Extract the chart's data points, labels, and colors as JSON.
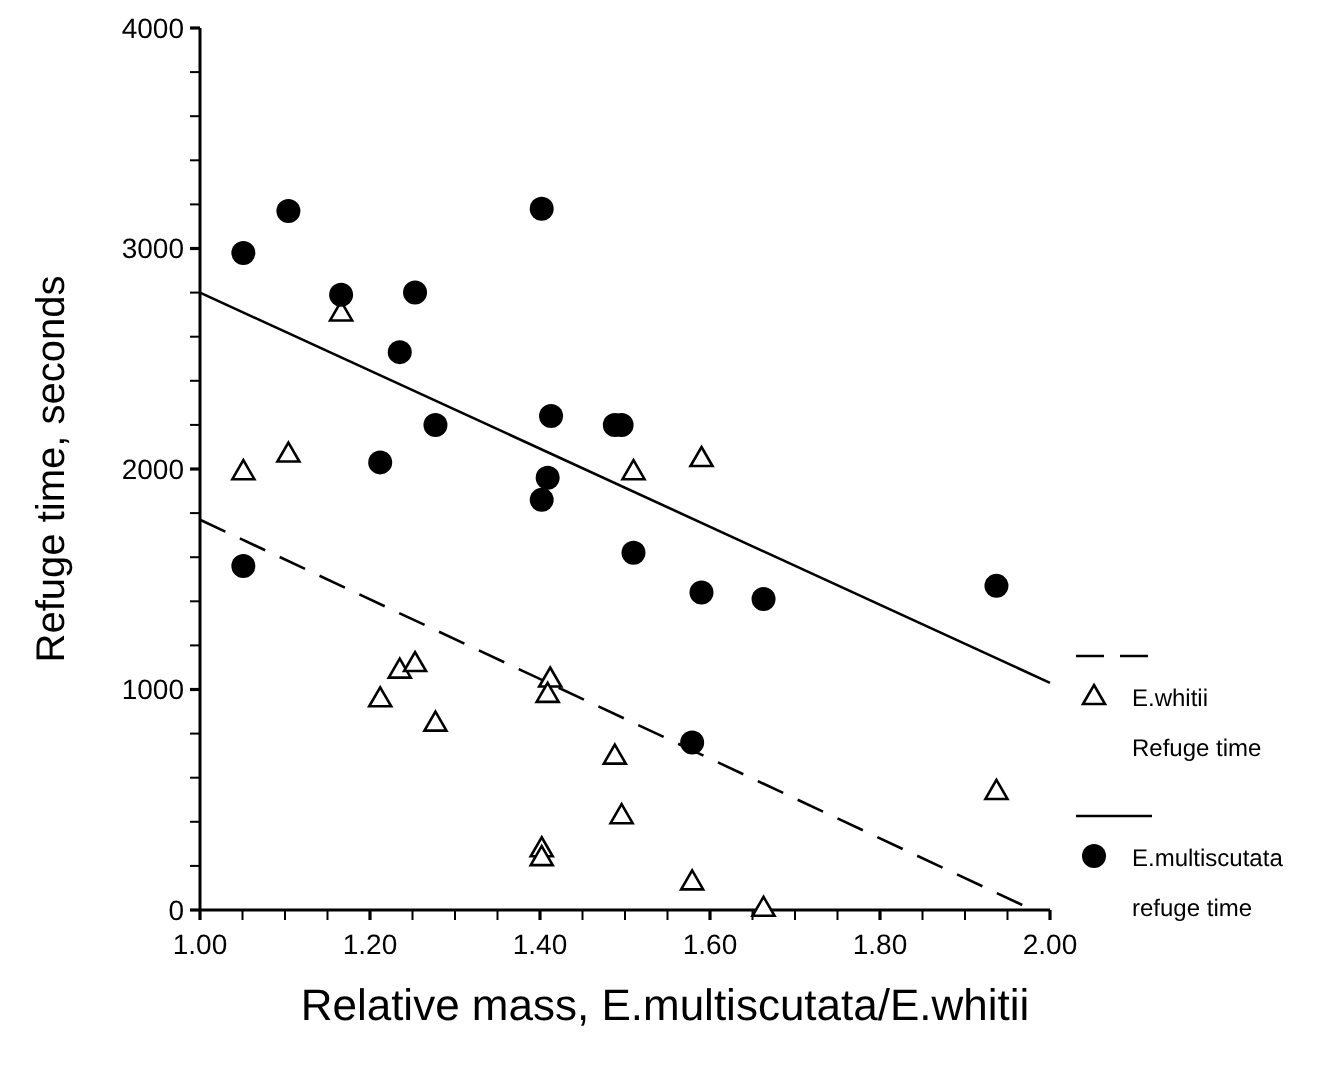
{
  "chart_data": {
    "type": "scatter",
    "xlabel": "Relative mass, E.multiscutata/E.whitii",
    "ylabel": "Refuge time, seconds",
    "xlim": [
      1,
      2
    ],
    "ylim": [
      0,
      4000
    ],
    "xticks": [
      {
        "value": 1,
        "label": "1.00"
      },
      {
        "value": 1.05,
        "label": null
      },
      {
        "value": 1.1,
        "label": null
      },
      {
        "value": 1.15,
        "label": null
      },
      {
        "value": 1.2,
        "label": "1.20"
      },
      {
        "value": 1.25,
        "label": null
      },
      {
        "value": 1.3,
        "label": null
      },
      {
        "value": 1.35,
        "label": null
      },
      {
        "value": 1.4,
        "label": "1.40"
      },
      {
        "value": 1.45,
        "label": null
      },
      {
        "value": 1.5,
        "label": null
      },
      {
        "value": 1.55,
        "label": null
      },
      {
        "value": 1.6,
        "label": "1.60"
      },
      {
        "value": 1.65,
        "label": null
      },
      {
        "value": 1.7,
        "label": null
      },
      {
        "value": 1.75,
        "label": null
      },
      {
        "value": 1.8,
        "label": "1.80"
      },
      {
        "value": 1.85,
        "label": null
      },
      {
        "value": 1.9,
        "label": null
      },
      {
        "value": 1.95,
        "label": null
      },
      {
        "value": 2,
        "label": "2.00"
      }
    ],
    "yticks": [
      0,
      {
        "value": 200,
        "label": null
      },
      {
        "value": 400,
        "label": null
      },
      {
        "value": 600,
        "label": null
      },
      {
        "value": 800,
        "label": null
      },
      1000,
      {
        "value": 1200,
        "label": null
      },
      {
        "value": 1400,
        "label": null
      },
      {
        "value": 1600,
        "label": null
      },
      {
        "value": 1800,
        "label": null
      },
      2000,
      {
        "value": 2200,
        "label": null
      },
      {
        "value": 2400,
        "label": null
      },
      {
        "value": 2600,
        "label": null
      },
      {
        "value": 2800,
        "label": null
      },
      3000,
      {
        "value": 3200,
        "label": null
      },
      {
        "value": 3400,
        "label": null
      },
      {
        "value": 3600,
        "label": null
      },
      {
        "value": 3800,
        "label": null
      },
      4000
    ],
    "grid": false,
    "legend": "right",
    "series": [
      {
        "type": "line",
        "color": "#000000",
        "line_style": "dashed",
        "x": [
          1,
          1.98
        ],
        "values": [
          1770,
          0
        ]
      },
      {
        "name": "E.whitii Refuge time",
        "color": "#000000",
        "marker": "triangle",
        "x": [
          1.051,
          1.104,
          1.166,
          1.51,
          1.59,
          1.212,
          1.235,
          1.253,
          1.277,
          1.412,
          1.409,
          1.488,
          1.496,
          1.402,
          1.402,
          1.579,
          1.663,
          1.937
        ],
        "values": [
          1990,
          2070,
          2710,
          1990,
          2050,
          960,
          1090,
          1120,
          850,
          1050,
          980,
          700,
          430,
          280,
          240,
          130,
          10,
          540
        ]
      },
      {
        "type": "line",
        "color": "#000000",
        "line_style": "solid",
        "x": [
          1,
          2
        ],
        "values": [
          2800,
          1030
        ]
      },
      {
        "name": "E.multiscutata refuge time",
        "color": "#000000",
        "marker": "circle",
        "x": [
          1.051,
          1.104,
          1.166,
          1.253,
          1.235,
          1.277,
          1.212,
          1.402,
          1.413,
          1.488,
          1.496,
          1.409,
          1.402,
          1.051,
          1.51,
          1.59,
          1.579,
          1.663,
          1.937
        ],
        "values": [
          2980,
          3170,
          2790,
          2800,
          2530,
          2200,
          2030,
          3180,
          2240,
          2200,
          2200,
          1960,
          1860,
          1560,
          1620,
          1440,
          760,
          1410,
          1470
        ]
      }
    ]
  }
}
